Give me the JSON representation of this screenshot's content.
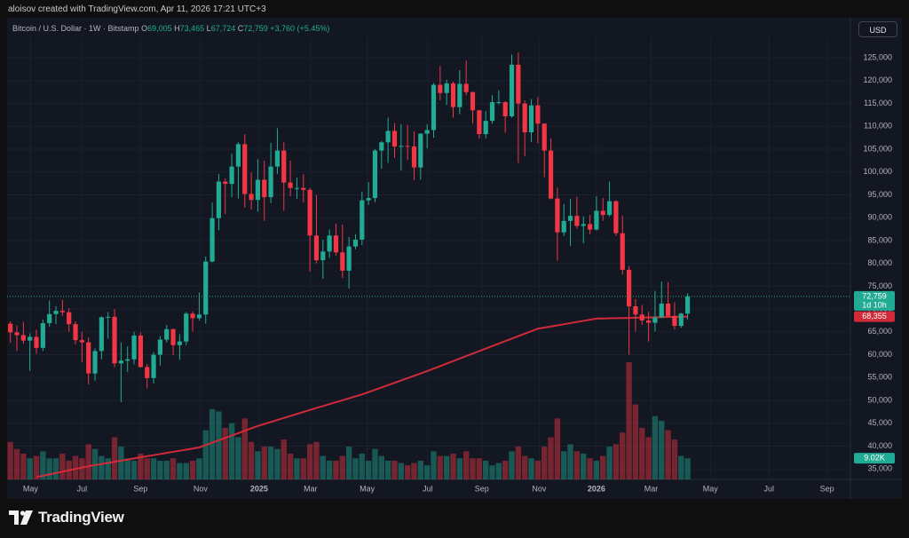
{
  "page": {
    "credit": "aloisov created with TradingView.com, Apr 11, 2026 17:21 UTC+3",
    "brand": "TradingView",
    "currency": "USD"
  },
  "chart_data": {
    "type": "candlestick",
    "title": "Bitcoin / U.S. Dollar · 1W · Bitstamp",
    "ohlc": [
      {
        "key": "O",
        "value": "69,005"
      },
      {
        "key": "H",
        "value": "73,465"
      },
      {
        "key": "L",
        "value": "67,724"
      },
      {
        "key": "C",
        "value": "72,759"
      }
    ],
    "change": "+3,760 (+5.45%)",
    "up_color": "#22ab94",
    "down_color": "#f23645",
    "ma_color": "#d12a38",
    "xlim": [
      -0.5,
      129
    ],
    "xticks": [
      {
        "value": 3.1,
        "label": "May"
      },
      {
        "value": 11,
        "label": "Jul"
      },
      {
        "value": 20,
        "label": "Sep"
      },
      {
        "value": 29.2,
        "label": "Nov"
      },
      {
        "value": 38.2,
        "label": "2025",
        "major": true
      },
      {
        "value": 46.1,
        "label": "Mar"
      },
      {
        "value": 54.8,
        "label": "May"
      },
      {
        "value": 64.1,
        "label": "Jul"
      },
      {
        "value": 72.4,
        "label": "Sep"
      },
      {
        "value": 81.2,
        "label": "Nov"
      },
      {
        "value": 90,
        "label": "2026",
        "major": true
      },
      {
        "value": 98.4,
        "label": "Mar"
      },
      {
        "value": 107.5,
        "label": "May"
      },
      {
        "value": 116.5,
        "label": "Jul"
      },
      {
        "value": 125.4,
        "label": "Sep"
      }
    ],
    "ylim": [
      32700,
      129500
    ],
    "yticks": [
      {
        "value": 35000,
        "label": "35,000"
      },
      {
        "value": 40000,
        "label": "40,000"
      },
      {
        "value": 45000,
        "label": "45,000"
      },
      {
        "value": 50000,
        "label": "50,000"
      },
      {
        "value": 55000,
        "label": "55,000"
      },
      {
        "value": 60000,
        "label": "60,000"
      },
      {
        "value": 65000,
        "label": "65,000"
      },
      {
        "value": 70000,
        "label": "70,000"
      },
      {
        "value": 75000,
        "label": "75,000"
      },
      {
        "value": 80000,
        "label": "80,000"
      },
      {
        "value": 85000,
        "label": "85,000"
      },
      {
        "value": 90000,
        "label": "90,000"
      },
      {
        "value": 95000,
        "label": "95,000"
      },
      {
        "value": 100000,
        "label": "100,000"
      },
      {
        "value": 105000,
        "label": "105,000"
      },
      {
        "value": 110000,
        "label": "110,000"
      },
      {
        "value": 115000,
        "label": "115,000"
      },
      {
        "value": 120000,
        "label": "120,000"
      },
      {
        "value": 125000,
        "label": "125,000"
      }
    ],
    "grid": true,
    "open": [
      66800,
      64900,
      64300,
      63100,
      63900,
      61500,
      66900,
      68900,
      69600,
      69300,
      66700,
      63200,
      62700,
      55900,
      60800,
      68200,
      68300,
      58100,
      58700,
      59000,
      64200,
      57300,
      54900,
      60000,
      63300,
      65600,
      62100,
      62900,
      69000,
      68000,
      68800,
      80400,
      89900,
      97900,
      97400,
      101200,
      106100,
      95200,
      93900,
      98300,
      94500,
      101200,
      104700,
      97700,
      96500,
      96500,
      96100,
      86100,
      80700,
      82600,
      86100,
      82400,
      78400,
      83700,
      85200,
      93800,
      94300,
      104700,
      106500,
      109000,
      105600,
      105700,
      105600,
      101000,
      108400,
      109200,
      119100,
      117300,
      119400,
      114200,
      119300,
      117500,
      113500,
      108300,
      111200,
      115300,
      115300,
      112200,
      123500,
      115000,
      108700,
      114600,
      110600,
      104700,
      94200,
      86800,
      89300,
      90400,
      88200,
      88600,
      87400,
      91500,
      90600,
      93600,
      86600,
      78600,
      70600,
      68800,
      67500,
      67000,
      68200,
      71200,
      68500,
      66300,
      69005
    ],
    "high": [
      67300,
      66400,
      67200,
      64700,
      65500,
      67700,
      71900,
      70600,
      72000,
      70200,
      67300,
      65000,
      63800,
      61400,
      68400,
      69400,
      70000,
      62700,
      61800,
      65000,
      64900,
      58000,
      60600,
      64100,
      66500,
      65700,
      64500,
      69400,
      69500,
      73600,
      81500,
      93300,
      99600,
      98600,
      104000,
      106600,
      108300,
      99900,
      102800,
      102500,
      106400,
      109600,
      106500,
      102500,
      98800,
      99500,
      96500,
      95000,
      85200,
      87400,
      88700,
      88500,
      85800,
      86400,
      95700,
      97800,
      105000,
      106800,
      111900,
      110700,
      110500,
      110300,
      108900,
      108500,
      110500,
      119500,
      123200,
      120200,
      119800,
      122300,
      124400,
      117600,
      113600,
      113300,
      116800,
      117900,
      115500,
      125700,
      126200,
      115700,
      116000,
      116400,
      110700,
      107400,
      96600,
      93000,
      94100,
      94600,
      90300,
      90600,
      94700,
      94300,
      97900,
      93800,
      90400,
      79400,
      72200,
      70900,
      69400,
      74000,
      76000,
      75900,
      71500,
      69200,
      73465
    ],
    "low": [
      62600,
      60800,
      62400,
      56500,
      60200,
      60800,
      66100,
      66700,
      68500,
      65000,
      62300,
      58400,
      53500,
      54300,
      59000,
      63500,
      57300,
      49600,
      56200,
      57900,
      57200,
      52600,
      53700,
      57600,
      62700,
      59900,
      58900,
      62100,
      65100,
      67500,
      66800,
      80200,
      87300,
      90800,
      94500,
      94200,
      92200,
      91800,
      91300,
      89300,
      93200,
      99600,
      91500,
      94700,
      94100,
      93400,
      78200,
      80000,
      76600,
      81200,
      81700,
      76800,
      74500,
      83100,
      84000,
      92800,
      93400,
      100700,
      102000,
      103100,
      100300,
      102600,
      98200,
      98300,
      105200,
      107500,
      115700,
      114700,
      111900,
      112700,
      116800,
      110600,
      107300,
      107400,
      110600,
      114800,
      108600,
      111900,
      102000,
      103500,
      106600,
      106300,
      98900,
      94000,
      80600,
      86000,
      83800,
      87600,
      84400,
      86400,
      87200,
      89300,
      90300,
      86000,
      77600,
      60000,
      65100,
      66500,
      62900,
      65100,
      68000,
      68200,
      65500,
      65900,
      67724
    ],
    "close": [
      64900,
      64300,
      63100,
      63900,
      61500,
      66900,
      68900,
      69600,
      69300,
      66700,
      63200,
      62700,
      55900,
      60800,
      68200,
      68300,
      58100,
      58700,
      59000,
      64200,
      57300,
      54900,
      60000,
      63300,
      65600,
      62100,
      62900,
      69000,
      68000,
      68800,
      80400,
      89900,
      97900,
      97400,
      101200,
      106100,
      95200,
      93900,
      98300,
      94500,
      101200,
      104700,
      97700,
      96500,
      96500,
      96100,
      86100,
      80700,
      82600,
      86100,
      82400,
      78400,
      83700,
      85200,
      93800,
      94300,
      104700,
      106500,
      109000,
      105600,
      105700,
      105600,
      101000,
      108400,
      109200,
      119100,
      117300,
      119400,
      114200,
      119300,
      117500,
      113500,
      108300,
      111200,
      115300,
      115300,
      112200,
      123500,
      115000,
      108700,
      114600,
      110600,
      104700,
      94200,
      86800,
      89300,
      90400,
      88200,
      88600,
      87400,
      91500,
      90600,
      93600,
      86600,
      78600,
      70600,
      68800,
      67500,
      67000,
      68200,
      71200,
      68500,
      66300,
      69000,
      72759
    ],
    "volume": [
      16000,
      13000,
      11000,
      9000,
      10000,
      12000,
      9000,
      9000,
      11000,
      8000,
      10000,
      9000,
      15000,
      13000,
      10000,
      9000,
      18000,
      14000,
      9000,
      8000,
      11000,
      9000,
      9000,
      8000,
      8000,
      9000,
      7000,
      7000,
      8000,
      9000,
      21000,
      30000,
      29000,
      22000,
      24000,
      18000,
      26000,
      16000,
      12000,
      14000,
      14000,
      13000,
      17000,
      11000,
      9000,
      9000,
      15000,
      16000,
      10000,
      8000,
      8000,
      10000,
      14000,
      9000,
      11000,
      8000,
      13000,
      10000,
      8000,
      8000,
      7000,
      6000,
      7000,
      8000,
      6000,
      12000,
      10000,
      10000,
      11000,
      9000,
      12000,
      9000,
      9000,
      8000,
      6000,
      7000,
      8000,
      12000,
      14000,
      10000,
      9000,
      8000,
      14000,
      18000,
      26000,
      12000,
      15000,
      12000,
      11000,
      9000,
      8000,
      10000,
      14000,
      15000,
      20000,
      50000,
      32000,
      22000,
      18000,
      27000,
      25000,
      21000,
      17000,
      10000,
      9020
    ],
    "ma": {
      "values": [
        null,
        null,
        null,
        null,
        33200,
        33500,
        33800,
        34100,
        34400,
        34700,
        35000,
        35300,
        35600,
        35840,
        36080,
        36320,
        36560,
        36800,
        37050,
        37290,
        37530,
        37770,
        38010,
        38250,
        38500,
        38740,
        38980,
        39220,
        39460,
        39700,
        40220,
        40740,
        41270,
        41790,
        42310,
        42830,
        43360,
        43880,
        44400,
        44840,
        45280,
        45710,
        46150,
        46590,
        47030,
        47460,
        47900,
        48330,
        48750,
        49180,
        49600,
        50030,
        50450,
        50880,
        51300,
        51810,
        52320,
        52830,
        53340,
        53850,
        54360,
        54870,
        55380,
        55890,
        56400,
        56950,
        57500,
        58050,
        58600,
        59150,
        59700,
        60250,
        60800,
        61340,
        61890,
        62430,
        62980,
        63520,
        64070,
        64610,
        65160,
        65700,
        65940,
        66190,
        66430,
        66680,
        66920,
        67170,
        67410,
        67660,
        67900,
        67930,
        67970,
        68000,
        68030,
        68060,
        68100,
        68130,
        68160,
        68190,
        68230,
        68260,
        68290,
        68320,
        68355
      ]
    },
    "price_tags": [
      {
        "value": 72759,
        "label": "72,759",
        "sub": "1d 10h",
        "color": "#22ab94"
      },
      {
        "value": 68355,
        "label": "68,355",
        "color": "#d12a38"
      }
    ],
    "volume_tag": {
      "value": 9020,
      "label": "9.02K",
      "color": "#22ab94"
    }
  }
}
